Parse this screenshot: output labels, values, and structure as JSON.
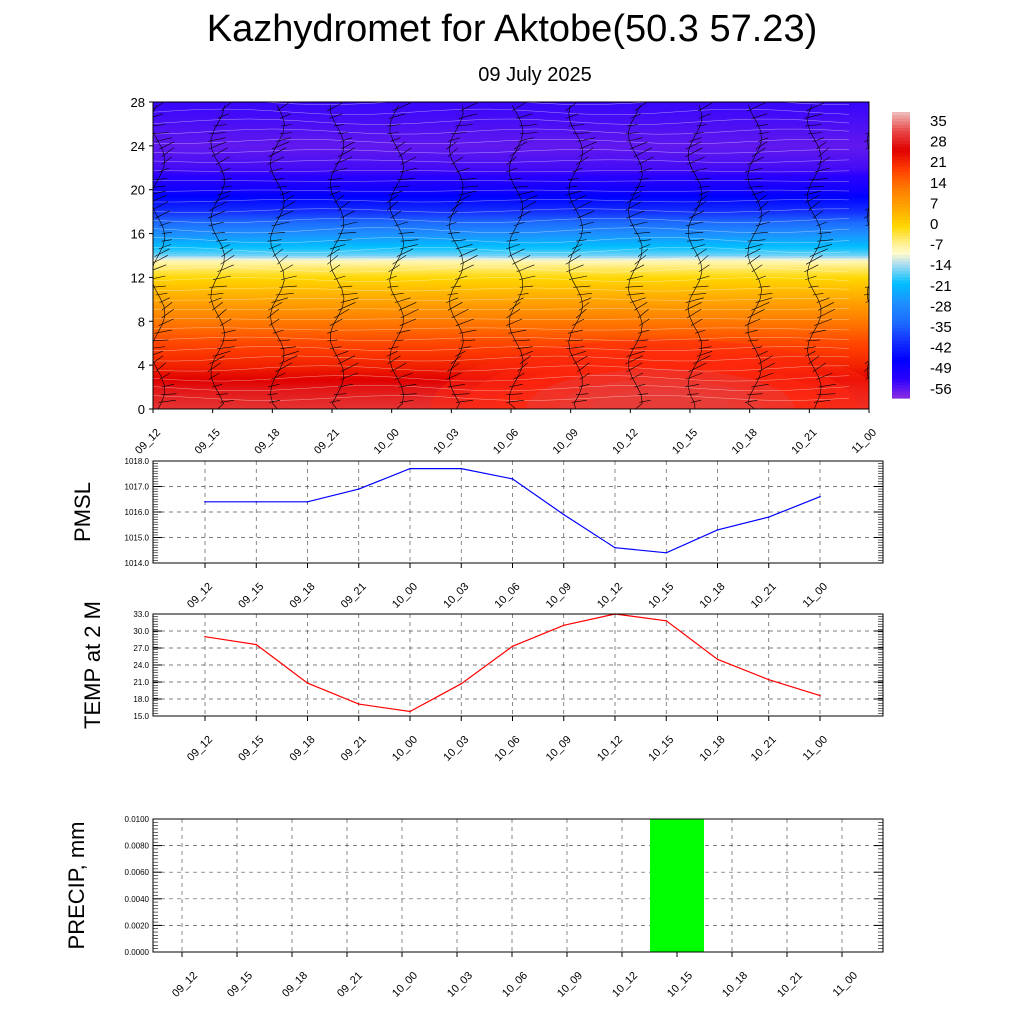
{
  "header": {
    "title": "Kazhydromet for Aktobe(50.3 57.23)",
    "subtitle": "09 July 2025"
  },
  "chart_data": [
    {
      "type": "heatmap",
      "name": "cross-section",
      "time_labels": [
        "09_12",
        "09_15",
        "09_18",
        "09_21",
        "10_00",
        "10_03",
        "10_06",
        "10_09",
        "10_12",
        "10_15",
        "10_18",
        "10_21",
        "11_00"
      ],
      "y_ticks": [
        0,
        4,
        8,
        12,
        16,
        20,
        24,
        28
      ],
      "ylim": [
        0,
        28
      ],
      "colorbar_labels": [
        "35",
        "28",
        "21",
        "14",
        "7",
        "0",
        "-7",
        "-14",
        "-21",
        "-28",
        "-35",
        "-42",
        "-49",
        "-56"
      ],
      "colorbar_range": [
        -63,
        42
      ],
      "colors": [
        "#8a2be2",
        "#0000ff",
        "#1e90ff",
        "#00bfff",
        "#fffacd",
        "#ffd700",
        "#ff8c00",
        "#ff4500",
        "#e00000",
        "#e8a0a0"
      ],
      "level_profile": [
        {
          "level": 0,
          "value": 33
        },
        {
          "level": 2,
          "value": 30
        },
        {
          "level": 4,
          "value": 24
        },
        {
          "level": 6,
          "value": 20
        },
        {
          "level": 8,
          "value": 14
        },
        {
          "level": 10,
          "value": 7
        },
        {
          "level": 12,
          "value": 0
        },
        {
          "level": 13.5,
          "value": -8
        },
        {
          "level": 14,
          "value": -16
        },
        {
          "level": 16,
          "value": -28
        },
        {
          "level": 18,
          "value": -42
        },
        {
          "level": 20,
          "value": -52
        },
        {
          "level": 22,
          "value": -58
        },
        {
          "level": 24,
          "value": -60
        },
        {
          "level": 28,
          "value": -57
        }
      ]
    },
    {
      "type": "line",
      "name": "pmsl",
      "ylabel": "PMSL",
      "categories": [
        "09_12",
        "09_15",
        "09_18",
        "09_21",
        "10_00",
        "10_03",
        "10_06",
        "10_09",
        "10_12",
        "10_15",
        "10_18",
        "10_21",
        "11_00"
      ],
      "values": [
        1016.4,
        1016.4,
        1016.4,
        1016.9,
        1017.7,
        1017.7,
        1017.3,
        1015.9,
        1014.6,
        1014.4,
        1015.3,
        1015.8,
        1016.6
      ],
      "y_ticks": [
        "1014.0",
        "1015.0",
        "1016.0",
        "1017.0",
        "1018.0"
      ],
      "ylim": [
        1014,
        1018
      ],
      "color": "#0000ff",
      "grid": true
    },
    {
      "type": "line",
      "name": "temp",
      "ylabel": "TEMP at 2 M",
      "categories": [
        "09_12",
        "09_15",
        "09_18",
        "09_21",
        "10_00",
        "10_03",
        "10_06",
        "10_09",
        "10_12",
        "10_15",
        "10_18",
        "10_21",
        "11_00"
      ],
      "values": [
        29.0,
        27.6,
        20.8,
        17.1,
        15.8,
        20.7,
        27.3,
        31.0,
        33.0,
        31.8,
        25.0,
        21.4,
        18.6
      ],
      "y_ticks": [
        "15.0",
        "18.0",
        "21.0",
        "24.0",
        "27.0",
        "30.0",
        "33.0"
      ],
      "ylim": [
        15,
        33
      ],
      "color": "#ff0000",
      "grid": true
    },
    {
      "type": "bar",
      "name": "precip",
      "ylabel": "PRECIP, mm",
      "categories": [
        "09_12",
        "09_15",
        "09_18",
        "09_21",
        "10_00",
        "10_03",
        "10_06",
        "10_09",
        "10_12",
        "10_15",
        "10_18",
        "10_21",
        "11_00"
      ],
      "values": [
        0,
        0,
        0,
        0,
        0,
        0,
        0,
        0,
        0,
        0.01,
        0,
        0,
        0
      ],
      "y_ticks": [
        "0.0000",
        "0.0020",
        "0.0040",
        "0.0060",
        "0.0080",
        "0.0100"
      ],
      "ylim": [
        0,
        0.01
      ],
      "color": "#00ff00",
      "grid": true
    }
  ]
}
